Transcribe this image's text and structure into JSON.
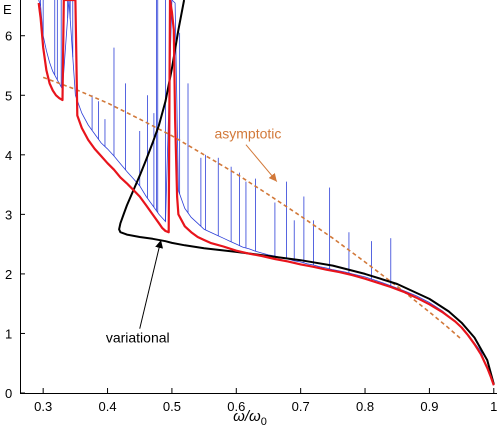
{
  "chart_data": {
    "type": "line",
    "title": "",
    "xlabel": "ω/ω",
    "xlabel_subscript": "0",
    "ylabel": "E",
    "xlim": [
      0.255,
      1.005
    ],
    "ylim": [
      0,
      6.6
    ],
    "grid": false,
    "x_ticks": [
      "0.3",
      "0.4",
      "0.5",
      "0.6",
      "0.7",
      "0.8",
      "0.9",
      "1"
    ],
    "x_tick_values": [
      0.3,
      0.4,
      0.5,
      0.6,
      0.7,
      0.8,
      0.9,
      1.0
    ],
    "y_ticks": [
      "0",
      "1",
      "2",
      "3",
      "4",
      "5",
      "6"
    ],
    "y_tick_values": [
      0,
      1,
      2,
      3,
      4,
      5,
      6
    ],
    "colors": {
      "exact": "#e8141c",
      "variational": "#000000",
      "asymptotic": "#d2793a",
      "spikes": "#2d3fd8"
    },
    "annotations": [
      {
        "text": "asymptotic",
        "color": "#d2793a",
        "arrow_from": [
          0.615,
          4.17
        ],
        "arrow_to": [
          0.663,
          3.55
        ]
      },
      {
        "text": "variational",
        "color": "#000000",
        "arrow_from": [
          0.45,
          1.08
        ],
        "arrow_to": [
          0.483,
          2.57
        ]
      }
    ],
    "series": [
      {
        "style": "red-solid",
        "x": [
          0.293,
          0.296,
          0.3,
          0.305,
          0.31,
          0.315,
          0.32,
          0.325,
          0.33,
          0.332,
          0.335,
          0.34,
          0.345,
          0.35,
          0.353,
          0.36,
          0.37,
          0.38,
          0.39,
          0.4,
          0.41,
          0.42,
          0.43,
          0.44,
          0.45,
          0.46,
          0.47,
          0.48,
          0.485,
          0.49,
          0.495,
          0.497,
          0.5,
          0.503,
          0.505,
          0.508,
          0.51,
          0.52,
          0.53,
          0.54,
          0.55,
          0.56,
          0.58,
          0.6,
          0.62,
          0.64,
          0.66,
          0.68,
          0.7,
          0.72,
          0.74,
          0.76,
          0.78,
          0.8,
          0.82,
          0.84,
          0.86,
          0.88,
          0.9,
          0.92,
          0.94,
          0.95,
          0.96,
          0.97,
          0.98,
          0.99,
          0.995,
          1.0
        ],
        "y": [
          6.55,
          6.3,
          5.8,
          5.42,
          5.2,
          5.08,
          5.0,
          4.95,
          4.92,
          6.6,
          6.6,
          6.6,
          6.6,
          6.6,
          4.66,
          4.45,
          4.25,
          4.1,
          3.98,
          3.86,
          3.75,
          3.62,
          3.52,
          3.41,
          3.3,
          3.15,
          3.0,
          2.85,
          2.77,
          2.72,
          2.7,
          6.6,
          6.4,
          6.1,
          4.6,
          3.3,
          3.0,
          2.8,
          2.7,
          2.62,
          2.57,
          2.52,
          2.46,
          2.39,
          2.34,
          2.3,
          2.25,
          2.21,
          2.16,
          2.12,
          2.07,
          2.03,
          1.98,
          1.92,
          1.85,
          1.78,
          1.7,
          1.6,
          1.49,
          1.36,
          1.2,
          1.1,
          0.97,
          0.82,
          0.65,
          0.42,
          0.28,
          0.13
        ]
      },
      {
        "style": "black-solid",
        "x": [
          0.519,
          0.51,
          0.5,
          0.49,
          0.48,
          0.47,
          0.46,
          0.45,
          0.44,
          0.43,
          0.425,
          0.42,
          0.418,
          0.42,
          0.43,
          0.45,
          0.47,
          0.49,
          0.5,
          0.52,
          0.55,
          0.6,
          0.65,
          0.7,
          0.75,
          0.8,
          0.85,
          0.9,
          0.93,
          0.95,
          0.97,
          0.99,
          1.0
        ],
        "y": [
          6.6,
          6.1,
          5.45,
          4.9,
          4.5,
          4.2,
          3.92,
          3.65,
          3.4,
          3.15,
          3.0,
          2.85,
          2.75,
          2.7,
          2.66,
          2.62,
          2.59,
          2.55,
          2.52,
          2.48,
          2.43,
          2.37,
          2.3,
          2.23,
          2.14,
          2.0,
          1.83,
          1.58,
          1.37,
          1.18,
          0.93,
          0.55,
          0.15
        ]
      },
      {
        "style": "orange-dashed",
        "x": [
          0.3,
          0.35,
          0.4,
          0.45,
          0.5,
          0.55,
          0.6,
          0.65,
          0.7,
          0.75,
          0.8,
          0.85,
          0.9,
          0.93,
          0.95
        ],
        "y": [
          5.3,
          5.1,
          4.87,
          4.6,
          4.32,
          4.0,
          3.68,
          3.33,
          2.97,
          2.6,
          2.2,
          1.79,
          1.36,
          1.09,
          0.9
        ]
      },
      {
        "style": "blue-spikes",
        "x": [
          0.293,
          0.296,
          0.3,
          0.305,
          0.31,
          0.315,
          0.32,
          0.325,
          0.33,
          0.34,
          0.35,
          0.36,
          0.37,
          0.38,
          0.39,
          0.4,
          0.41,
          0.42,
          0.43,
          0.44,
          0.45,
          0.46,
          0.47,
          0.48,
          0.49,
          0.5,
          0.505,
          0.51,
          0.52,
          0.53,
          0.54,
          0.55,
          0.56,
          0.57,
          0.58,
          0.59,
          0.6,
          0.61,
          0.62,
          0.63,
          0.64,
          0.65,
          0.66,
          0.67,
          0.68,
          0.69,
          0.7,
          0.71,
          0.72,
          0.73,
          0.74,
          0.75,
          0.76,
          0.77,
          0.78,
          0.8,
          0.82,
          0.84,
          0.86,
          0.88,
          0.9,
          0.92,
          0.94,
          0.96,
          0.98,
          1.0
        ],
        "y": [
          6.6,
          6.5,
          6.0,
          5.75,
          5.55,
          5.4,
          5.3,
          5.2,
          5.1,
          6.6,
          5.0,
          4.7,
          4.5,
          4.35,
          4.2,
          4.1,
          3.98,
          3.85,
          3.72,
          3.6,
          3.48,
          3.3,
          3.15,
          3.0,
          2.88,
          6.6,
          6.55,
          3.4,
          3.1,
          2.95,
          2.85,
          2.75,
          2.7,
          2.65,
          2.6,
          2.55,
          2.5,
          2.45,
          2.42,
          2.38,
          2.35,
          2.32,
          2.3,
          2.27,
          2.25,
          2.22,
          2.2,
          2.17,
          2.15,
          2.12,
          2.1,
          2.07,
          2.05,
          2.03,
          2.0,
          1.95,
          1.88,
          1.8,
          1.72,
          1.63,
          1.52,
          1.38,
          1.2,
          0.98,
          0.7,
          0.13
        ],
        "spikes": [
          [
            0.296,
            6.6
          ],
          [
            0.3,
            6.6
          ],
          [
            0.318,
            6.6
          ],
          [
            0.322,
            6.6
          ],
          [
            0.328,
            6.6
          ],
          [
            0.338,
            6.6
          ],
          [
            0.342,
            6.6
          ],
          [
            0.346,
            6.6
          ],
          [
            0.376,
            5.0
          ],
          [
            0.386,
            4.9
          ],
          [
            0.396,
            4.6
          ],
          [
            0.41,
            5.8
          ],
          [
            0.428,
            5.2
          ],
          [
            0.45,
            4.4
          ],
          [
            0.462,
            5.0
          ],
          [
            0.472,
            4.7
          ],
          [
            0.476,
            6.6
          ],
          [
            0.478,
            6.6
          ],
          [
            0.49,
            6.6
          ],
          [
            0.512,
            6.05
          ],
          [
            0.525,
            5.2
          ],
          [
            0.545,
            3.95
          ],
          [
            0.552,
            4.0
          ],
          [
            0.572,
            3.95
          ],
          [
            0.592,
            3.8
          ],
          [
            0.605,
            3.7
          ],
          [
            0.615,
            3.55
          ],
          [
            0.63,
            3.6
          ],
          [
            0.66,
            3.2
          ],
          [
            0.678,
            3.55
          ],
          [
            0.69,
            2.9
          ],
          [
            0.705,
            3.3
          ],
          [
            0.72,
            2.9
          ],
          [
            0.745,
            3.45
          ],
          [
            0.775,
            2.7
          ],
          [
            0.81,
            2.55
          ],
          [
            0.84,
            2.6
          ]
        ]
      }
    ]
  }
}
